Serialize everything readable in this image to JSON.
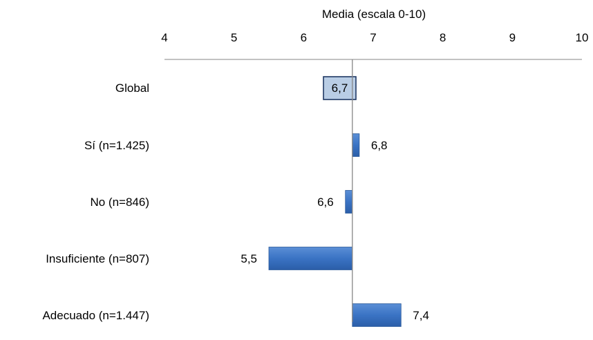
{
  "chart_data": {
    "type": "bar",
    "orientation": "horizontal",
    "xlabel": "Media (escala 0-10)",
    "xaxis_position": "top",
    "xlim": [
      4,
      10
    ],
    "ticks": [
      "4",
      "5",
      "6",
      "7",
      "8",
      "9",
      "10"
    ],
    "tick_values": [
      4,
      5,
      6,
      7,
      8,
      9,
      10
    ],
    "baseline": 6.7,
    "grid": false,
    "legend": "none",
    "categories": [
      "Global",
      "Sí (n=1.425)",
      "No (n=846)",
      "Insuficiente (n=807)",
      "Adecuado (n=1.447)"
    ],
    "values": [
      6.7,
      6.8,
      6.6,
      5.5,
      7.4
    ],
    "value_labels": [
      "6,7",
      "6,8",
      "6,6",
      "5,5",
      "7,4"
    ],
    "highlight_label_index": 0,
    "colors": {
      "bar": "#3a73c4",
      "bar_edge": "#2c5a9a",
      "highlight_box_fill": "#b9cde5",
      "highlight_box_edge": "#1f3864",
      "axis": "#868686"
    }
  }
}
